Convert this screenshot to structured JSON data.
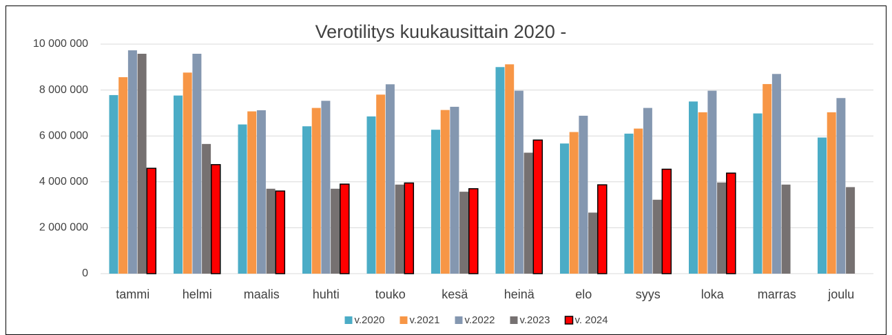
{
  "chart_data": {
    "type": "bar",
    "title": "Verotilitys kuukausittain 2020 -",
    "categories": [
      "tammi",
      "helmi",
      "maalis",
      "huhti",
      "touko",
      "kesä",
      "heinä",
      "elo",
      "syys",
      "loka",
      "marras",
      "joulu"
    ],
    "series": [
      {
        "name": "v.2020",
        "color": "#4bacc6",
        "values": [
          7780000,
          7760000,
          6500000,
          6420000,
          6850000,
          6270000,
          9000000,
          5670000,
          6100000,
          7500000,
          6980000,
          5930000
        ]
      },
      {
        "name": "v.2021",
        "color": "#f79646",
        "values": [
          8560000,
          8760000,
          7070000,
          7220000,
          7800000,
          7130000,
          9120000,
          6170000,
          6320000,
          7030000,
          8260000,
          7030000
        ]
      },
      {
        "name": "v.2022",
        "color": "#8497b0",
        "values": [
          9730000,
          9580000,
          7120000,
          7530000,
          8250000,
          7270000,
          7970000,
          6880000,
          7220000,
          7970000,
          8700000,
          7650000
        ]
      },
      {
        "name": "v.2023",
        "color": "#767171",
        "values": [
          9580000,
          5650000,
          3700000,
          3700000,
          3880000,
          3570000,
          5270000,
          2660000,
          3220000,
          3970000,
          3880000,
          3770000
        ]
      },
      {
        "name": "v. 2024",
        "color": "#ff0000",
        "values": [
          4590000,
          4750000,
          3600000,
          3900000,
          3950000,
          3700000,
          5820000,
          3870000,
          4550000,
          4380000,
          null,
          null
        ]
      }
    ],
    "ylim": [
      0,
      10000000
    ],
    "yticks": [
      0,
      {
        "value": 2000000,
        "label": "2 000 000"
      },
      {
        "value": 4000000,
        "label": "4 000 000"
      },
      {
        "value": 6000000,
        "label": "6 000 000"
      },
      {
        "value": 8000000,
        "label": "8 000 000"
      },
      {
        "value": 10000000,
        "label": "10 000 000"
      }
    ],
    "grid": true,
    "legend": "bottom"
  }
}
